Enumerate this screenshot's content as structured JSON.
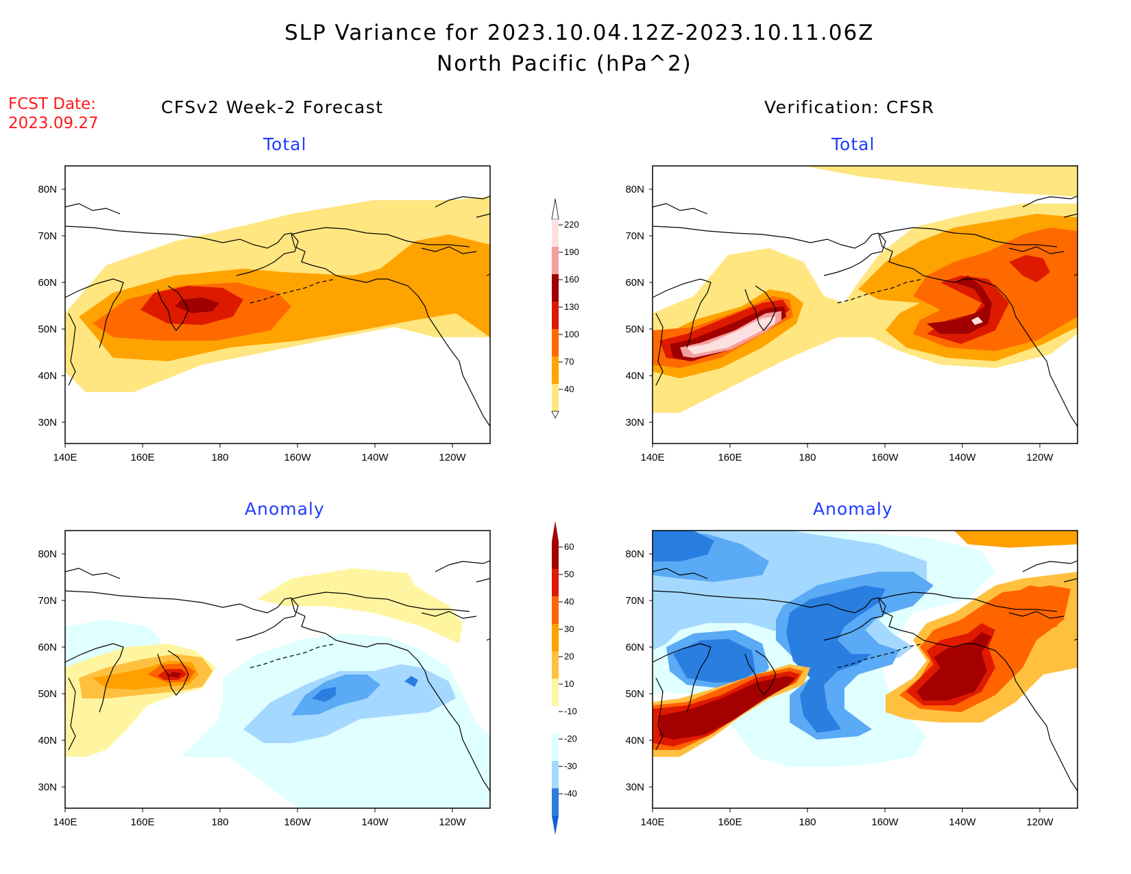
{
  "header": {
    "title_line1": "SLP Variance for 2023.10.04.12Z-2023.10.11.06Z",
    "title_line2": "North Pacific (hPa^2)"
  },
  "fcst_date": {
    "label": "FCST Date:",
    "value": "2023.09.27"
  },
  "columns": {
    "left": "CFSv2 Week-2 Forecast",
    "right": "Verification: CFSR"
  },
  "panel_titles": {
    "top_left": "Total",
    "top_right": "Total",
    "bottom_left": "Anomaly",
    "bottom_right": "Anomaly"
  },
  "axes": {
    "lon_ticks": [
      "140E",
      "160E",
      "180",
      "160W",
      "140W",
      "120W"
    ],
    "lat_ticks": [
      "80N",
      "70N",
      "60N",
      "50N",
      "40N",
      "30N"
    ]
  },
  "colorbar_total": {
    "levels": [
      "220",
      "190",
      "160",
      "130",
      "100",
      "70",
      "40"
    ],
    "colors": [
      "#ffe0e0",
      "#f5a0a0",
      "#a00000",
      "#dd1a00",
      "#ff6a00",
      "#ffa300",
      "#ffe680"
    ]
  },
  "colorbar_anomaly": {
    "levels": [
      "60",
      "50",
      "40",
      "30",
      "20",
      "10",
      "-10",
      "-20",
      "-30",
      "-40"
    ],
    "colors_warm": [
      "#a50000",
      "#e01a00",
      "#ff6400",
      "#ffa000",
      "#ffc040",
      "#fff5a0"
    ],
    "colors_cool": [
      "#e0ffff",
      "#a5d8ff",
      "#5aaaf5",
      "#2a7ee0",
      "#1060d0"
    ]
  }
}
